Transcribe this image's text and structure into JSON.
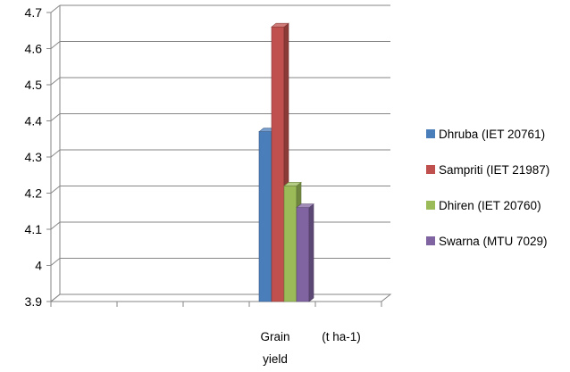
{
  "chart_data": {
    "type": "bar",
    "style": "3d-clustered-column",
    "categories": [
      "Grain yield",
      "(t ha-1)"
    ],
    "category_label_lines": [
      [
        "Grain",
        "yield"
      ],
      [
        "(t ha-1)"
      ]
    ],
    "series": [
      {
        "name": "Dhruba (IET 20761)",
        "values": [
          4.37,
          null
        ],
        "color": "#4A7EBB"
      },
      {
        "name": "Sampriti (IET 21987)",
        "values": [
          4.66,
          null
        ],
        "color": "#C0504D"
      },
      {
        "name": "Dhiren (IET 20760)",
        "values": [
          4.22,
          null
        ],
        "color": "#9BBB59"
      },
      {
        "name": "Swarna (MTU 7029)",
        "values": [
          4.16,
          null
        ],
        "color": "#8064A2"
      }
    ],
    "ylim": [
      3.9,
      4.7
    ],
    "yticks": [
      "3.9",
      "4",
      "4.1",
      "4.2",
      "4.3",
      "4.4",
      "4.5",
      "4.6",
      "4.7"
    ],
    "title": "",
    "xlabel": "",
    "ylabel": "",
    "grid": true,
    "legend_position": "right"
  }
}
